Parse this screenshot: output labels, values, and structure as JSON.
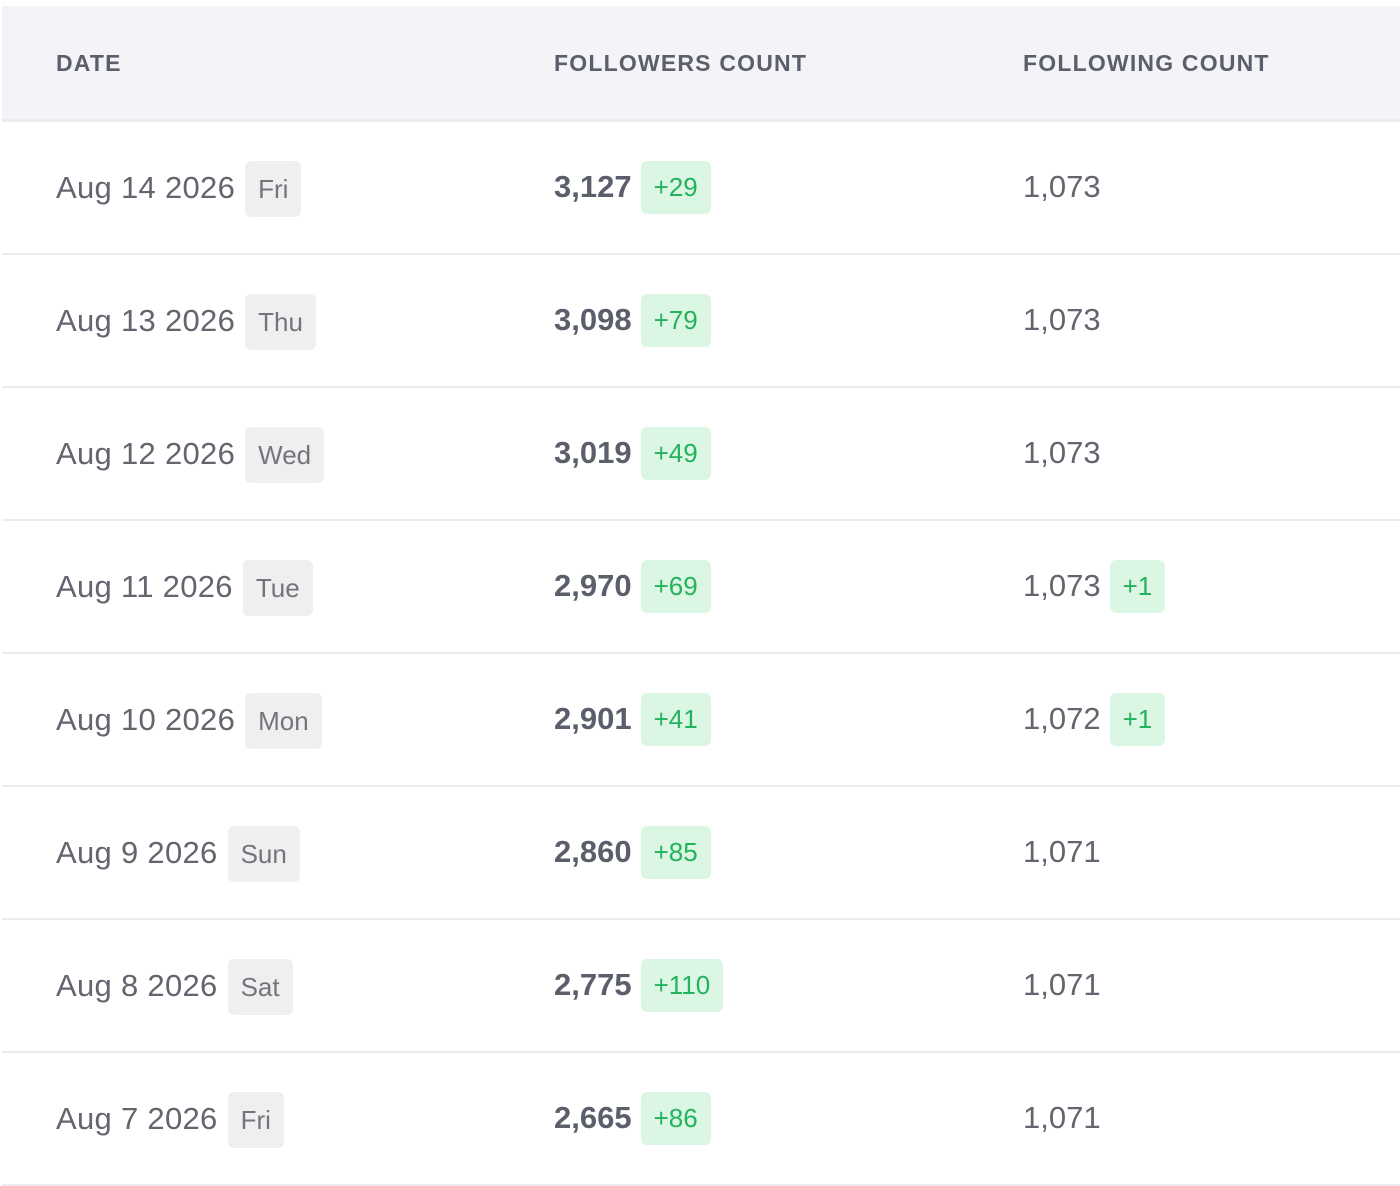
{
  "table": {
    "headers": {
      "date": "DATE",
      "followers": "FOLLOWERS COUNT",
      "following": "FOLLOWING COUNT"
    },
    "rows": [
      {
        "date": "Aug 14 2026",
        "day": "Fri",
        "followers": "3,127",
        "followers_delta": "+29",
        "following": "1,073",
        "following_delta": ""
      },
      {
        "date": "Aug 13 2026",
        "day": "Thu",
        "followers": "3,098",
        "followers_delta": "+79",
        "following": "1,073",
        "following_delta": ""
      },
      {
        "date": "Aug 12 2026",
        "day": "Wed",
        "followers": "3,019",
        "followers_delta": "+49",
        "following": "1,073",
        "following_delta": ""
      },
      {
        "date": "Aug 11 2026",
        "day": "Tue",
        "followers": "2,970",
        "followers_delta": "+69",
        "following": "1,073",
        "following_delta": "+1"
      },
      {
        "date": "Aug 10 2026",
        "day": "Mon",
        "followers": "2,901",
        "followers_delta": "+41",
        "following": "1,072",
        "following_delta": "+1"
      },
      {
        "date": "Aug 9 2026",
        "day": "Sun",
        "followers": "2,860",
        "followers_delta": "+85",
        "following": "1,071",
        "following_delta": ""
      },
      {
        "date": "Aug 8 2026",
        "day": "Sat",
        "followers": "2,775",
        "followers_delta": "+110",
        "following": "1,071",
        "following_delta": ""
      },
      {
        "date": "Aug 7 2026",
        "day": "Fri",
        "followers": "2,665",
        "followers_delta": "+86",
        "following": "1,071",
        "following_delta": ""
      }
    ],
    "colors": {
      "header_bg": "#f4f4f8",
      "delta_bg": "#dcf6e4",
      "delta_text": "#24b35d",
      "day_badge_bg": "#efefef"
    }
  }
}
